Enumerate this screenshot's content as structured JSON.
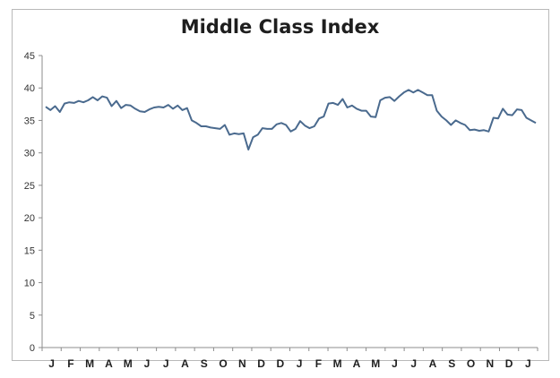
{
  "chart_data": {
    "type": "line",
    "title": "Middle Class Index",
    "xlabel": "",
    "ylabel": "",
    "ylim": [
      0,
      45
    ],
    "y_ticks": [
      0,
      5,
      10,
      15,
      20,
      25,
      30,
      35,
      40,
      45
    ],
    "x_tick_labels": [
      "J",
      "F",
      "M",
      "A",
      "M",
      "J",
      "J",
      "A",
      "S",
      "O",
      "N",
      "D",
      "D",
      "J",
      "F",
      "M",
      "A",
      "M",
      "J",
      "J",
      "A",
      "S",
      "O",
      "N",
      "D",
      "J"
    ],
    "grid": false,
    "series": [
      {
        "color": "#4a6a8e",
        "values": [
          37.1,
          36.6,
          37.2,
          36.3,
          37.6,
          37.8,
          37.7,
          38.0,
          37.8,
          38.1,
          38.6,
          38.1,
          38.7,
          38.5,
          37.2,
          38.0,
          36.9,
          37.4,
          37.3,
          36.8,
          36.4,
          36.3,
          36.7,
          37.0,
          37.1,
          37.0,
          37.4,
          36.8,
          37.3,
          36.6,
          36.9,
          35.0,
          34.6,
          34.1,
          34.1,
          33.9,
          33.8,
          33.7,
          34.3,
          32.8,
          33.0,
          32.9,
          33.0,
          30.5,
          32.4,
          32.8,
          33.8,
          33.7,
          33.7,
          34.4,
          34.6,
          34.3,
          33.3,
          33.7,
          34.9,
          34.2,
          33.8,
          34.1,
          35.3,
          35.6,
          37.6,
          37.7,
          37.4,
          38.3,
          37.0,
          37.3,
          36.8,
          36.5,
          36.5,
          35.6,
          35.5,
          38.1,
          38.5,
          38.6,
          38.0,
          38.7,
          39.3,
          39.7,
          39.3,
          39.7,
          39.3,
          38.9,
          38.9,
          36.5,
          35.6,
          35.0,
          34.3,
          35.0,
          34.6,
          34.3,
          33.5,
          33.6,
          33.4,
          33.5,
          33.3,
          35.4,
          35.3,
          36.8,
          35.9,
          35.8,
          36.7,
          36.6,
          35.4,
          35.0,
          34.6
        ]
      }
    ]
  }
}
